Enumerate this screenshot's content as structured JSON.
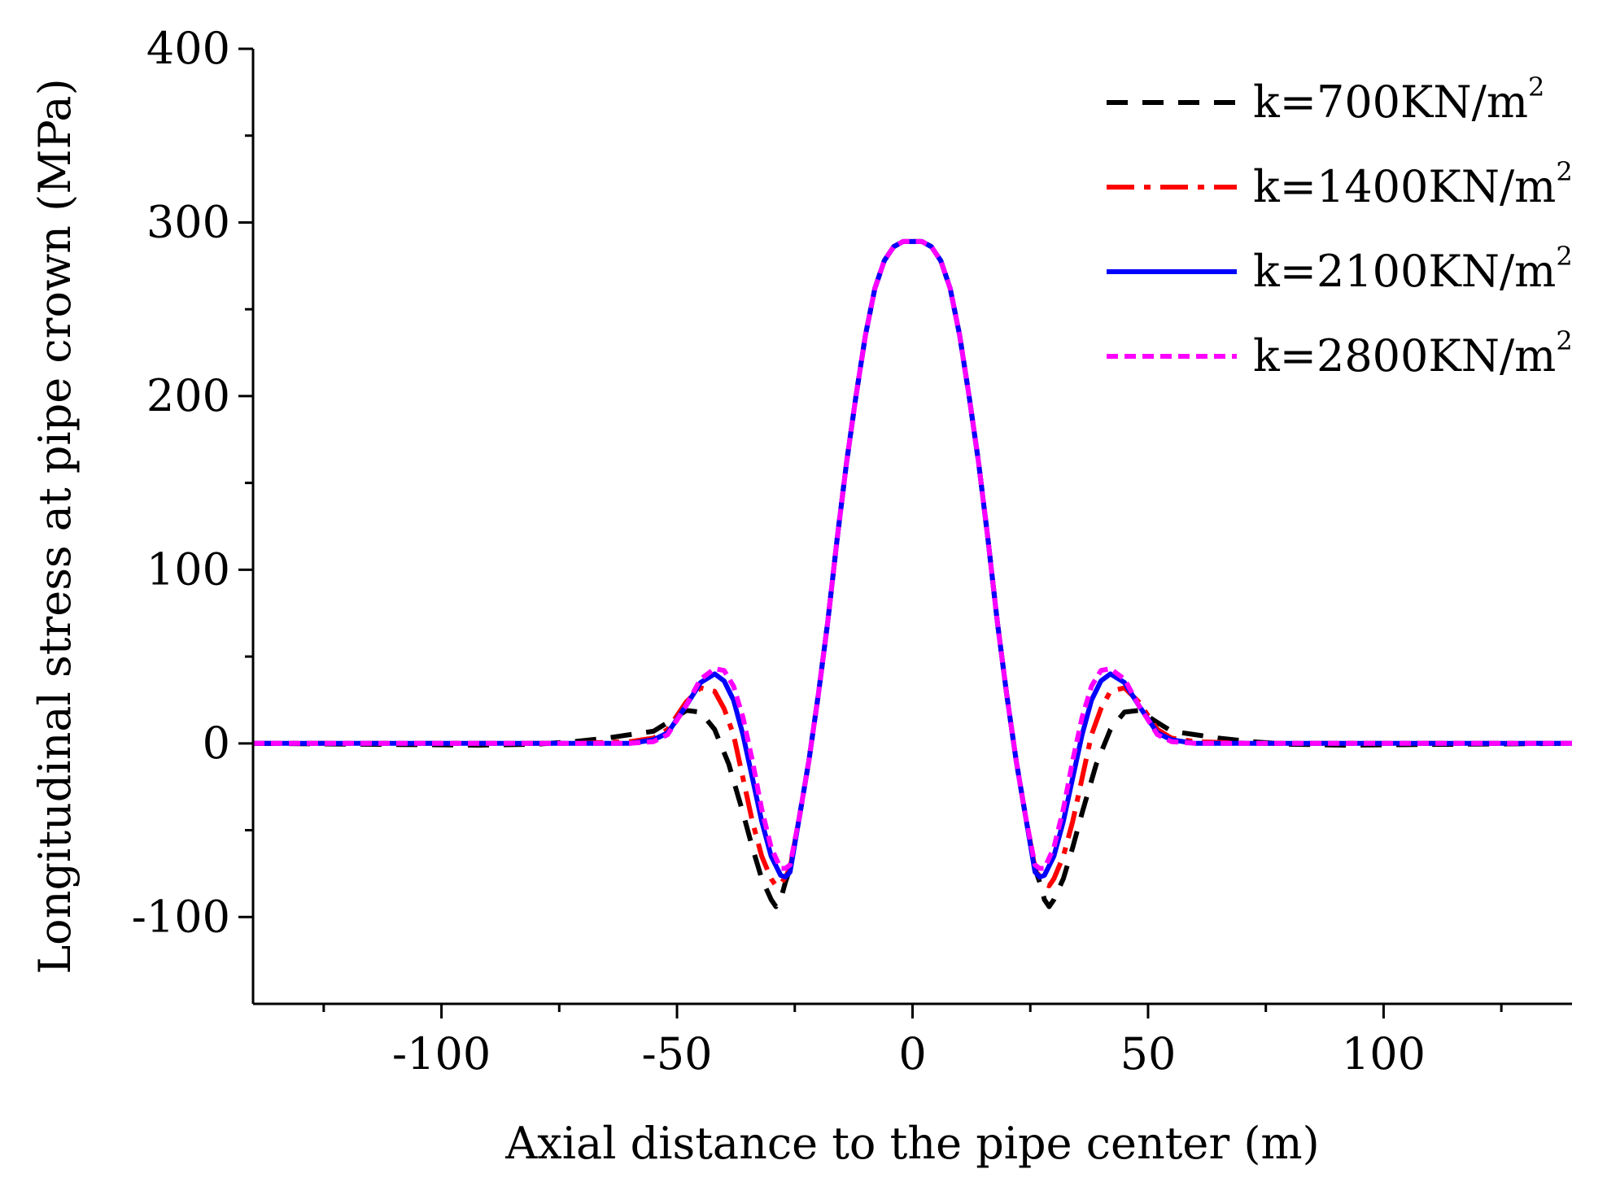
{
  "chart_data": {
    "type": "line",
    "title": "",
    "xlabel": "Axial distance to the pipe center (m)",
    "ylabel": "Longitudinal stress at pipe crown (MPa)",
    "xlim": [
      -140,
      140
    ],
    "ylim": [
      -150,
      400
    ],
    "grid": false,
    "legend_position": "top-right",
    "x_ticks": [
      -100,
      -50,
      0,
      50,
      100
    ],
    "x_tick_labels": [
      "-100",
      "-50",
      "0",
      "50",
      "100"
    ],
    "x_minor_ticks": [
      -125,
      -75,
      -25,
      25,
      75,
      125
    ],
    "y_ticks": [
      -100,
      0,
      100,
      200,
      300,
      400
    ],
    "y_tick_labels": [
      "-100",
      "0",
      "100",
      "200",
      "300",
      "400"
    ],
    "y_minor_ticks": [
      -50,
      50,
      150,
      250,
      350
    ],
    "series": [
      {
        "name": "k=700KN/m²",
        "legend_text": "k=700KN/m",
        "legend_sup": "2",
        "color": "#000000",
        "dash": "dashed",
        "x": [
          -140,
          -92,
          -80,
          -72,
          -65,
          -60,
          -55,
          -52,
          -48,
          -45,
          -42,
          -39,
          -36,
          -34,
          -32,
          -30,
          -29,
          -28,
          -27,
          -26,
          -24,
          -22,
          -20,
          -18,
          -16,
          -14,
          -12,
          -10,
          -8,
          -6,
          -4,
          -2,
          0,
          2,
          4,
          6,
          8,
          10,
          12,
          14,
          16,
          18,
          20,
          22,
          24,
          26,
          27,
          28,
          29,
          30,
          32,
          34,
          36,
          39,
          42,
          45,
          48,
          52,
          55,
          60,
          65,
          72,
          80,
          92,
          140
        ],
        "y": [
          0,
          -1,
          -0.5,
          1,
          3,
          5,
          7,
          12,
          19,
          18,
          8,
          -12,
          -40,
          -60,
          -78,
          -90,
          -94,
          -90,
          -80,
          -72,
          -42,
          -10,
          28,
          70,
          118,
          162,
          200,
          235,
          262,
          278,
          286,
          289,
          289,
          289,
          286,
          278,
          262,
          235,
          200,
          162,
          118,
          70,
          28,
          -10,
          -42,
          -72,
          -80,
          -90,
          -94,
          -90,
          -78,
          -60,
          -40,
          -12,
          8,
          18,
          19,
          12,
          7,
          5,
          3,
          1,
          -0.5,
          -1,
          0
        ]
      },
      {
        "name": "k=1400KN/m²",
        "legend_text": "k=1400KN/m",
        "legend_sup": "2",
        "color": "#ff0000",
        "dash": "dashdot",
        "x": [
          -140,
          -72,
          -60,
          -55,
          -52,
          -48,
          -45,
          -42,
          -40,
          -38,
          -36,
          -34,
          -32,
          -30,
          -29,
          -28,
          -27,
          -26,
          -24,
          -22,
          -20,
          -18,
          -16,
          -14,
          -12,
          -10,
          -8,
          -6,
          -4,
          -2,
          0,
          2,
          4,
          6,
          8,
          10,
          12,
          14,
          16,
          18,
          20,
          22,
          24,
          26,
          27,
          28,
          29,
          30,
          32,
          34,
          36,
          38,
          40,
          42,
          45,
          48,
          52,
          55,
          60,
          72,
          140
        ],
        "y": [
          0,
          0,
          1,
          3,
          8,
          24,
          32,
          30,
          20,
          5,
          -20,
          -45,
          -65,
          -78,
          -82,
          -81,
          -77,
          -72,
          -42,
          -10,
          28,
          70,
          118,
          162,
          200,
          235,
          262,
          278,
          286,
          289,
          289,
          289,
          286,
          278,
          262,
          235,
          200,
          162,
          118,
          70,
          28,
          -10,
          -42,
          -72,
          -77,
          -81,
          -82,
          -78,
          -65,
          -45,
          -20,
          5,
          20,
          30,
          32,
          24,
          8,
          3,
          1,
          0,
          0
        ]
      },
      {
        "name": "k=2100KN/m²",
        "legend_text": "k=2100KN/m",
        "legend_sup": "2",
        "color": "#0000ff",
        "dash": "solid",
        "x": [
          -140,
          -60,
          -55,
          -52,
          -48,
          -45,
          -42,
          -40,
          -38,
          -36,
          -34,
          -32,
          -30,
          -28,
          -27,
          -26,
          -24,
          -22,
          -20,
          -18,
          -16,
          -14,
          -12,
          -10,
          -8,
          -6,
          -4,
          -2,
          0,
          2,
          4,
          6,
          8,
          10,
          12,
          14,
          16,
          18,
          20,
          22,
          24,
          26,
          27,
          28,
          30,
          32,
          34,
          36,
          38,
          40,
          42,
          45,
          48,
          52,
          55,
          60,
          140
        ],
        "y": [
          0,
          0,
          2,
          6,
          22,
          35,
          40,
          36,
          25,
          5,
          -20,
          -45,
          -65,
          -76,
          -77,
          -74,
          -42,
          -10,
          28,
          70,
          118,
          162,
          200,
          235,
          262,
          278,
          286,
          289,
          289,
          289,
          286,
          278,
          262,
          235,
          200,
          162,
          118,
          70,
          28,
          -10,
          -42,
          -74,
          -77,
          -76,
          -65,
          -45,
          -20,
          5,
          25,
          36,
          40,
          35,
          22,
          6,
          2,
          0,
          0
        ]
      },
      {
        "name": "k=2800KN/m²",
        "legend_text": "k=2800KN/m",
        "legend_sup": "2",
        "color": "#ff00ff",
        "dash": "dotted",
        "x": [
          -140,
          -60,
          -55,
          -52,
          -48,
          -45,
          -42,
          -40,
          -38,
          -36,
          -34,
          -32,
          -30,
          -28,
          -27,
          -26,
          -24,
          -22,
          -20,
          -18,
          -16,
          -14,
          -12,
          -10,
          -8,
          -6,
          -4,
          -2,
          0,
          2,
          4,
          6,
          8,
          10,
          12,
          14,
          16,
          18,
          20,
          22,
          24,
          26,
          27,
          28,
          30,
          32,
          34,
          36,
          38,
          40,
          42,
          45,
          48,
          52,
          55,
          60,
          140
        ],
        "y": [
          0,
          0,
          1,
          5,
          22,
          37,
          43,
          42,
          33,
          15,
          -10,
          -38,
          -60,
          -72,
          -72,
          -70,
          -42,
          -10,
          28,
          70,
          118,
          162,
          200,
          235,
          262,
          278,
          286,
          289,
          289,
          289,
          286,
          278,
          262,
          235,
          200,
          162,
          118,
          70,
          28,
          -10,
          -42,
          -70,
          -72,
          -72,
          -60,
          -38,
          -10,
          15,
          33,
          42,
          43,
          37,
          22,
          5,
          1,
          0,
          0
        ]
      }
    ]
  }
}
